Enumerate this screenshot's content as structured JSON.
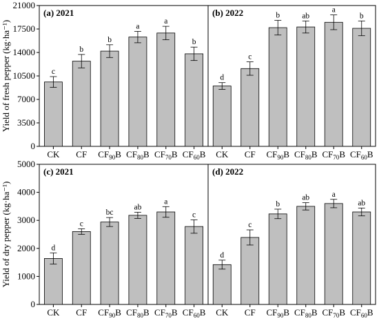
{
  "colors": {
    "bar_fill": "#bfbfbf",
    "stroke": "#000000"
  },
  "chart_data": [
    {
      "type": "bar",
      "panel_label": "(a) 2021",
      "ylabel": "Yield of fresh pepper (kg·ha⁻¹)",
      "ytick_labels": [
        "0",
        "3500",
        "7000",
        "10500",
        "14000",
        "17500",
        "21000"
      ],
      "ylim": [
        0,
        21000
      ],
      "categories": [
        "CK",
        "CF",
        "CF90B",
        "CF80B",
        "CF70B",
        "CF60B"
      ],
      "values": [
        9600,
        12700,
        14200,
        16300,
        16900,
        13800
      ],
      "errors": [
        800,
        1000,
        950,
        850,
        1000,
        1000
      ],
      "significance": [
        "c",
        "b",
        "b",
        "a",
        "a",
        "b"
      ]
    },
    {
      "type": "bar",
      "panel_label": "(b) 2022",
      "ylabel": "Yield of fresh pepper (kg·ha⁻¹)",
      "ylim": [
        0,
        21000
      ],
      "categories": [
        "CK",
        "CF",
        "CF90B",
        "CF80B",
        "CF70B",
        "CF60B"
      ],
      "values": [
        9000,
        11600,
        17700,
        17800,
        18500,
        17600
      ],
      "errors": [
        500,
        1000,
        1100,
        900,
        1100,
        1100
      ],
      "significance": [
        "d",
        "c",
        "b",
        "ab",
        "a",
        "b"
      ]
    },
    {
      "type": "bar",
      "panel_label": "(c) 2021",
      "ylabel": "Yield of dry pepper (kg·ha⁻¹)",
      "ytick_labels": [
        "0",
        "1000",
        "2000",
        "3000",
        "4000",
        "5000"
      ],
      "ylim": [
        0,
        5000
      ],
      "categories": [
        "CK",
        "CF",
        "CF90B",
        "CF80B",
        "CF70B",
        "CF60B"
      ],
      "values": [
        1640,
        2600,
        2940,
        3180,
        3300,
        2780
      ],
      "errors": [
        200,
        100,
        160,
        110,
        190,
        240
      ],
      "significance": [
        "d",
        "c",
        "bc",
        "ab",
        "a",
        "c"
      ]
    },
    {
      "type": "bar",
      "panel_label": "(d) 2022",
      "ylabel": "Yield of dry pepper (kg·ha⁻¹)",
      "ylim": [
        0,
        5000
      ],
      "categories": [
        "CK",
        "CF",
        "CF90B",
        "CF80B",
        "CF70B",
        "CF60B"
      ],
      "values": [
        1420,
        2390,
        3230,
        3500,
        3600,
        3300
      ],
      "errors": [
        160,
        270,
        170,
        130,
        150,
        140
      ],
      "significance": [
        "d",
        "c",
        "b",
        "ab",
        "a",
        "ab"
      ]
    }
  ]
}
